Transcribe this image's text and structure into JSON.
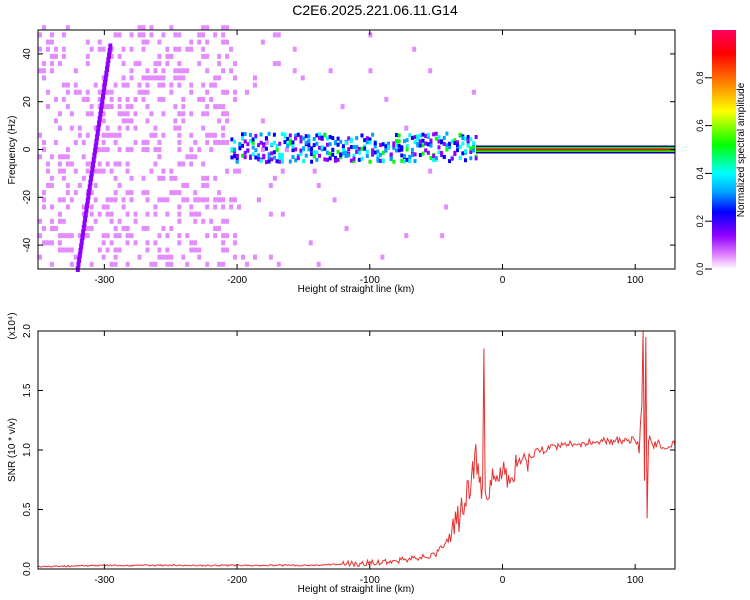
{
  "title": "C2E6.2025.221.06.11.G14",
  "chart_data": [
    {
      "type": "heatmap",
      "xlabel": "Height of straight line (km)",
      "ylabel": "Frequency (Hz)",
      "xlim": [
        -350,
        130
      ],
      "ylim": [
        -50,
        50
      ],
      "xticks": [
        -300,
        -200,
        -100,
        0,
        100
      ],
      "yticks": [
        -40,
        -20,
        0,
        20,
        40
      ],
      "colorbar": {
        "label": "Normalized spectral amplitude",
        "range": [
          0.0,
          1.0
        ],
        "ticks": [
          "0.0",
          "0.2",
          "0.4",
          "0.6",
          "0.8"
        ],
        "colors": [
          "#ffffff",
          "#e080ff",
          "#9000ff",
          "#0000ff",
          "#00a0ff",
          "#00ffff",
          "#00ff00",
          "#ffff00",
          "#ff8000",
          "#ff0000",
          "#ff0060"
        ]
      },
      "features": {
        "tone_frequency_hz": 0,
        "tone_start_km": -200,
        "diagonal_streak": {
          "from": [
            -320,
            -50
          ],
          "to": [
            -295,
            45
          ]
        }
      }
    },
    {
      "type": "line",
      "xlabel": "Height of straight line (km)",
      "ylabel": "SNR (10 * v/v)",
      "scale_label": "(x10⁴)",
      "xlim": [
        -350,
        130
      ],
      "ylim": [
        0,
        2.0
      ],
      "xticks": [
        -300,
        -200,
        -100,
        0,
        100
      ],
      "yticks": [
        "0.0",
        "0.5",
        "1.0",
        "1.5",
        "2.0"
      ],
      "line_color": "#e83030",
      "series": [
        {
          "x": [
            -350,
            -300,
            -250,
            -200,
            -150,
            -120,
            -100,
            -80,
            -60,
            -50,
            -40,
            -30,
            -25,
            -20,
            -15,
            -14,
            -13,
            -10,
            -5,
            0,
            10,
            20,
            30,
            40,
            50,
            60,
            70,
            80,
            90,
            95,
            100,
            103,
            105,
            106,
            107,
            108,
            109,
            110,
            112,
            115,
            120,
            130
          ],
          "y": [
            0.02,
            0.03,
            0.03,
            0.03,
            0.03,
            0.04,
            0.05,
            0.07,
            0.1,
            0.13,
            0.25,
            0.5,
            0.7,
            0.95,
            0.6,
            1.73,
            0.6,
            0.7,
            0.75,
            0.78,
            0.85,
            0.95,
            1.0,
            1.03,
            1.05,
            1.06,
            1.07,
            1.08,
            1.08,
            1.09,
            1.1,
            1.0,
            1.4,
            2.0,
            0.7,
            1.95,
            0.45,
            1.1,
            1.06,
            1.05,
            1.05,
            1.04
          ]
        }
      ]
    }
  ]
}
